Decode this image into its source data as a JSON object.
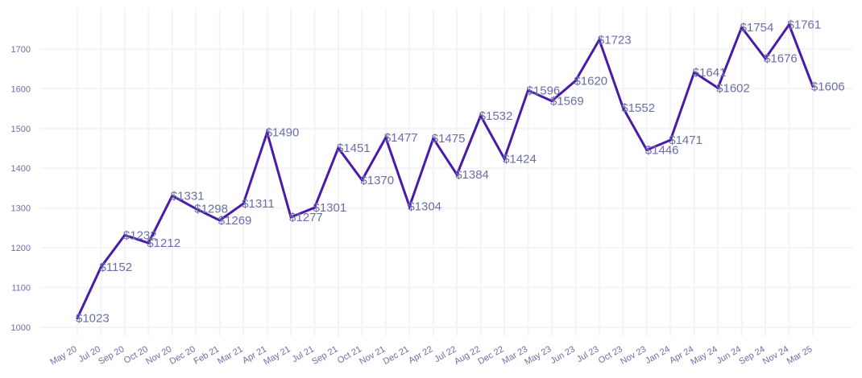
{
  "chart_data": {
    "type": "line",
    "title": "",
    "xlabel": "",
    "ylabel": "",
    "ylim": [
      1000,
      1761
    ],
    "yticks": [
      1000,
      1100,
      1200,
      1300,
      1400,
      1500,
      1600,
      1700
    ],
    "grid": true,
    "color": "#4a1aa8",
    "categories": [
      "May 20",
      "Jul 20",
      "Sep 20",
      "Oct 20",
      "Nov 20",
      "Dec 20",
      "Feb 21",
      "Mar 21",
      "Apr 21",
      "May 21",
      "Jul 21",
      "Sep 21",
      "Oct 21",
      "Nov 21",
      "Dec 21",
      "Apr 22",
      "Jul 22",
      "Aug 22",
      "Dec 22",
      "Mar 23",
      "May 23",
      "Jun 23",
      "Jul 23",
      "Oct 23",
      "Nov 23",
      "Jan 24",
      "Apr 24",
      "May 24",
      "Jun 24",
      "Sep 24",
      "Nov 24",
      "Mar 25"
    ],
    "values": [
      1023,
      1152,
      1232,
      1212,
      1331,
      1298,
      1269,
      1311,
      1490,
      1277,
      1301,
      1451,
      1370,
      1477,
      1304,
      1475,
      1384,
      1532,
      1424,
      1596,
      1569,
      1620,
      1723,
      1552,
      1446,
      1471,
      1641,
      1602,
      1754,
      1676,
      1761,
      1606
    ],
    "data_labels": [
      "$1023",
      "$1152",
      "$1232",
      "$1212",
      "$1331",
      "$1298",
      "$1269",
      "$1311",
      "$1490",
      "$1277",
      "$1301",
      "$1451",
      "$1370",
      "$1477",
      "$1304",
      "$1475",
      "$1384",
      "$1532",
      "$1424",
      "$1596",
      "$1569",
      "$1620",
      "$1723",
      "$1552",
      "$1446",
      "$1471",
      "$1641",
      "$1602",
      "$1754",
      "$1676",
      "$1761",
      "$1606"
    ]
  }
}
